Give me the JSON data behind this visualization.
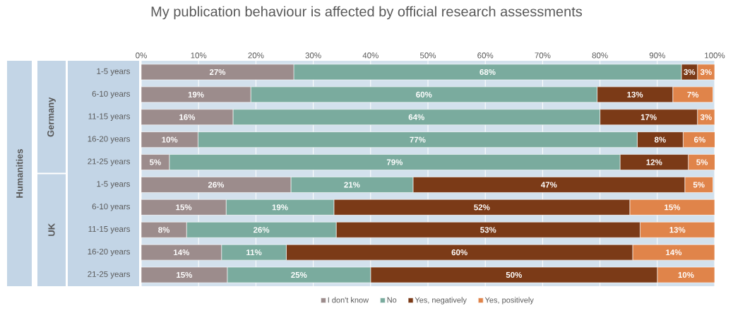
{
  "chart_data": {
    "type": "bar",
    "orientation": "horizontal",
    "stacked": true,
    "title": "My publication behaviour is affected by official research assessments",
    "categories": [
      "1-5 years",
      "6-10 years",
      "11-15 years",
      "16-20 years",
      "21-25 years",
      "1-5 years",
      "6-10 years",
      "11-15 years",
      "16-20 years",
      "21-25 years"
    ],
    "annotations": [
      "Humanities",
      "Germany",
      "UK"
    ],
    "series": [
      {
        "name": "I don't know",
        "color": "#9c8c8c",
        "values": [
          26.6,
          19.1,
          16.0,
          9.9,
          4.9,
          26.1,
          14.8,
          7.9,
          14.0,
          15.0
        ],
        "value_labels": [
          "27%",
          "19%",
          "16%",
          "10%",
          "5%",
          "26%",
          "15%",
          "8%",
          "14%",
          "15%"
        ]
      },
      {
        "name": "No",
        "color": "#7aab9e",
        "values": [
          67.6,
          60.4,
          64.0,
          76.6,
          78.6,
          21.3,
          18.8,
          26.1,
          11.3,
          25.0
        ],
        "value_labels": [
          "68%",
          "60%",
          "64%",
          "77%",
          "79%",
          "21%",
          "19%",
          "26%",
          "11%",
          "25%"
        ]
      },
      {
        "name": "Yes, negatively",
        "color": "#7b3a17",
        "values": [
          2.8,
          13.2,
          17.0,
          8.0,
          11.9,
          47.4,
          51.6,
          53.0,
          60.4,
          50.0
        ],
        "value_labels": [
          "3%",
          "13%",
          "17%",
          "8%",
          "12%",
          "47%",
          "52%",
          "53%",
          "60%",
          "50%"
        ]
      },
      {
        "name": "Yes, positively",
        "color": "#e0844a",
        "values": [
          3.0,
          7.0,
          3.0,
          5.8,
          4.8,
          4.9,
          14.8,
          13.0,
          14.3,
          10.0
        ],
        "value_labels": [
          "3%",
          "7%",
          "3%",
          "6%",
          "5%",
          "5%",
          "15%",
          "13%",
          "14%",
          "10%"
        ]
      }
    ],
    "xlim": [
      0,
      100
    ],
    "xticks": [
      {
        "value": 0,
        "label": "0%"
      },
      {
        "value": 10,
        "label": "10%"
      },
      {
        "value": 20,
        "label": "20%"
      },
      {
        "value": 30,
        "label": "30%"
      },
      {
        "value": 40,
        "label": "40%"
      },
      {
        "value": 50,
        "label": "50%"
      },
      {
        "value": 60,
        "label": "60%"
      },
      {
        "value": 70,
        "label": "70%"
      },
      {
        "value": 80,
        "label": "80%"
      },
      {
        "value": 90,
        "label": "90%"
      },
      {
        "value": 100,
        "label": "100%"
      }
    ],
    "grid": "x",
    "legend": "bottom"
  }
}
